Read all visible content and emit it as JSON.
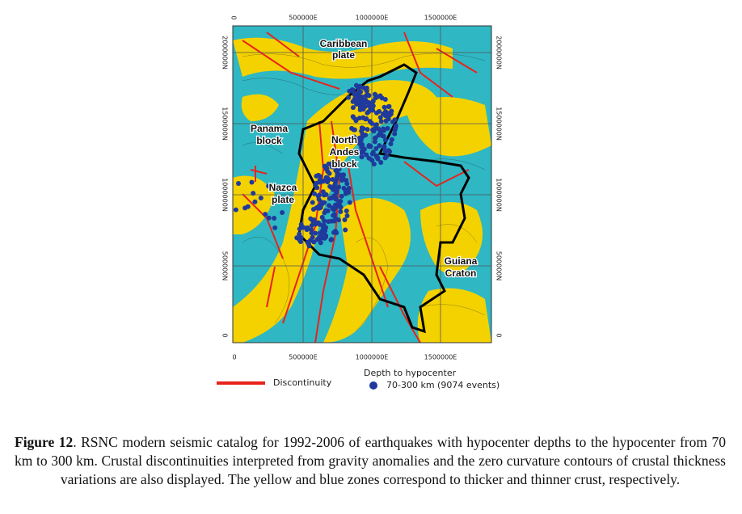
{
  "figure": {
    "axes": {
      "top": [
        "0",
        "500000E",
        "1000000E",
        "1500000E"
      ],
      "bottom": [
        "0",
        "500000E",
        "1000000E",
        "1500000E"
      ],
      "left": [
        "2000000N",
        "1500000N",
        "1000000N",
        "500000N",
        "0"
      ],
      "right": [
        "2000000N",
        "1500000N",
        "1000000N",
        "500000N",
        "0"
      ]
    },
    "map_labels": [
      {
        "lines": [
          "Caribbean",
          "plate"
        ]
      },
      {
        "lines": [
          "Panama",
          "block"
        ]
      },
      {
        "lines": [
          "North",
          "Andes",
          "block"
        ]
      },
      {
        "lines": [
          "Nazca",
          "plate"
        ]
      },
      {
        "lines": [
          "Guiana",
          "Craton"
        ]
      }
    ],
    "legend": {
      "line_label": "Discontinuity",
      "points_title": "Depth to hypocenter",
      "points_label": "70-300 km (9074 events)"
    },
    "caption": {
      "label": "Figure 12",
      "text": ". RSNC modern seismic catalog for 1992-2006 of earthquakes with hypocenter depths to the hypocenter from 70 km to 300 km. Crustal discontinuities interpreted from gravity anomalies and the zero curvature contours of crustal thickness variations are also displayed. The yellow and blue zones correspond to thicker and thinner crust, respectively."
    }
  }
}
